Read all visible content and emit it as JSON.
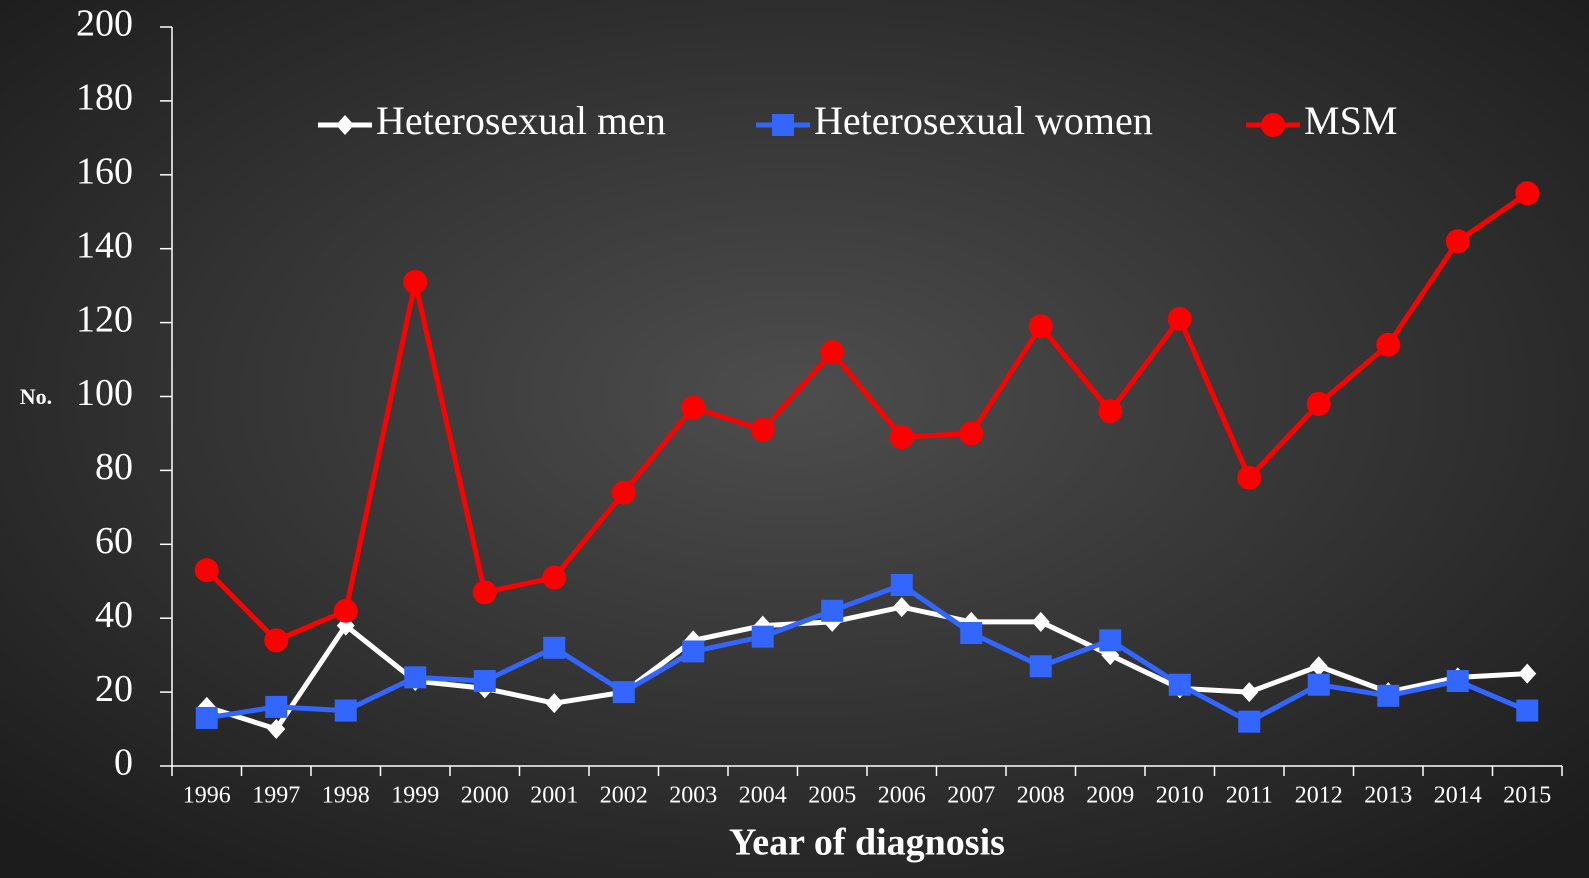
{
  "chart_data": {
    "type": "line",
    "x_label": "Year of diagnosis",
    "y_label": "No.",
    "categories": [
      "1996",
      "1997",
      "1998",
      "1999",
      "2000",
      "2001",
      "2002",
      "2003",
      "2004",
      "2005",
      "2006",
      "2007",
      "2008",
      "2009",
      "2010",
      "2011",
      "2012",
      "2013",
      "2014",
      "2015"
    ],
    "series": [
      {
        "name": "Heterosexual men",
        "color": "#ffffff",
        "marker": "diamond",
        "values": [
          16,
          10,
          38,
          23,
          21,
          17,
          20,
          34,
          38,
          39,
          43,
          39,
          39,
          30,
          21,
          20,
          27,
          20,
          24,
          25
        ]
      },
      {
        "name": "Heterosexual women",
        "color": "#3366ff",
        "marker": "square",
        "values": [
          13,
          16,
          15,
          24,
          23,
          32,
          20,
          31,
          35,
          42,
          49,
          36,
          27,
          34,
          22,
          12,
          22,
          19,
          23,
          15
        ]
      },
      {
        "name": "MSM",
        "color": "#ff0000",
        "marker": "circle",
        "values": [
          53,
          34,
          42,
          131,
          47,
          51,
          74,
          97,
          91,
          112,
          89,
          90,
          119,
          96,
          121,
          78,
          98,
          114,
          142,
          155
        ]
      }
    ],
    "ylim": [
      0,
      200
    ],
    "yticks": [
      0,
      20,
      40,
      60,
      80,
      100,
      120,
      140,
      160,
      180,
      200
    ],
    "legend": "top"
  }
}
